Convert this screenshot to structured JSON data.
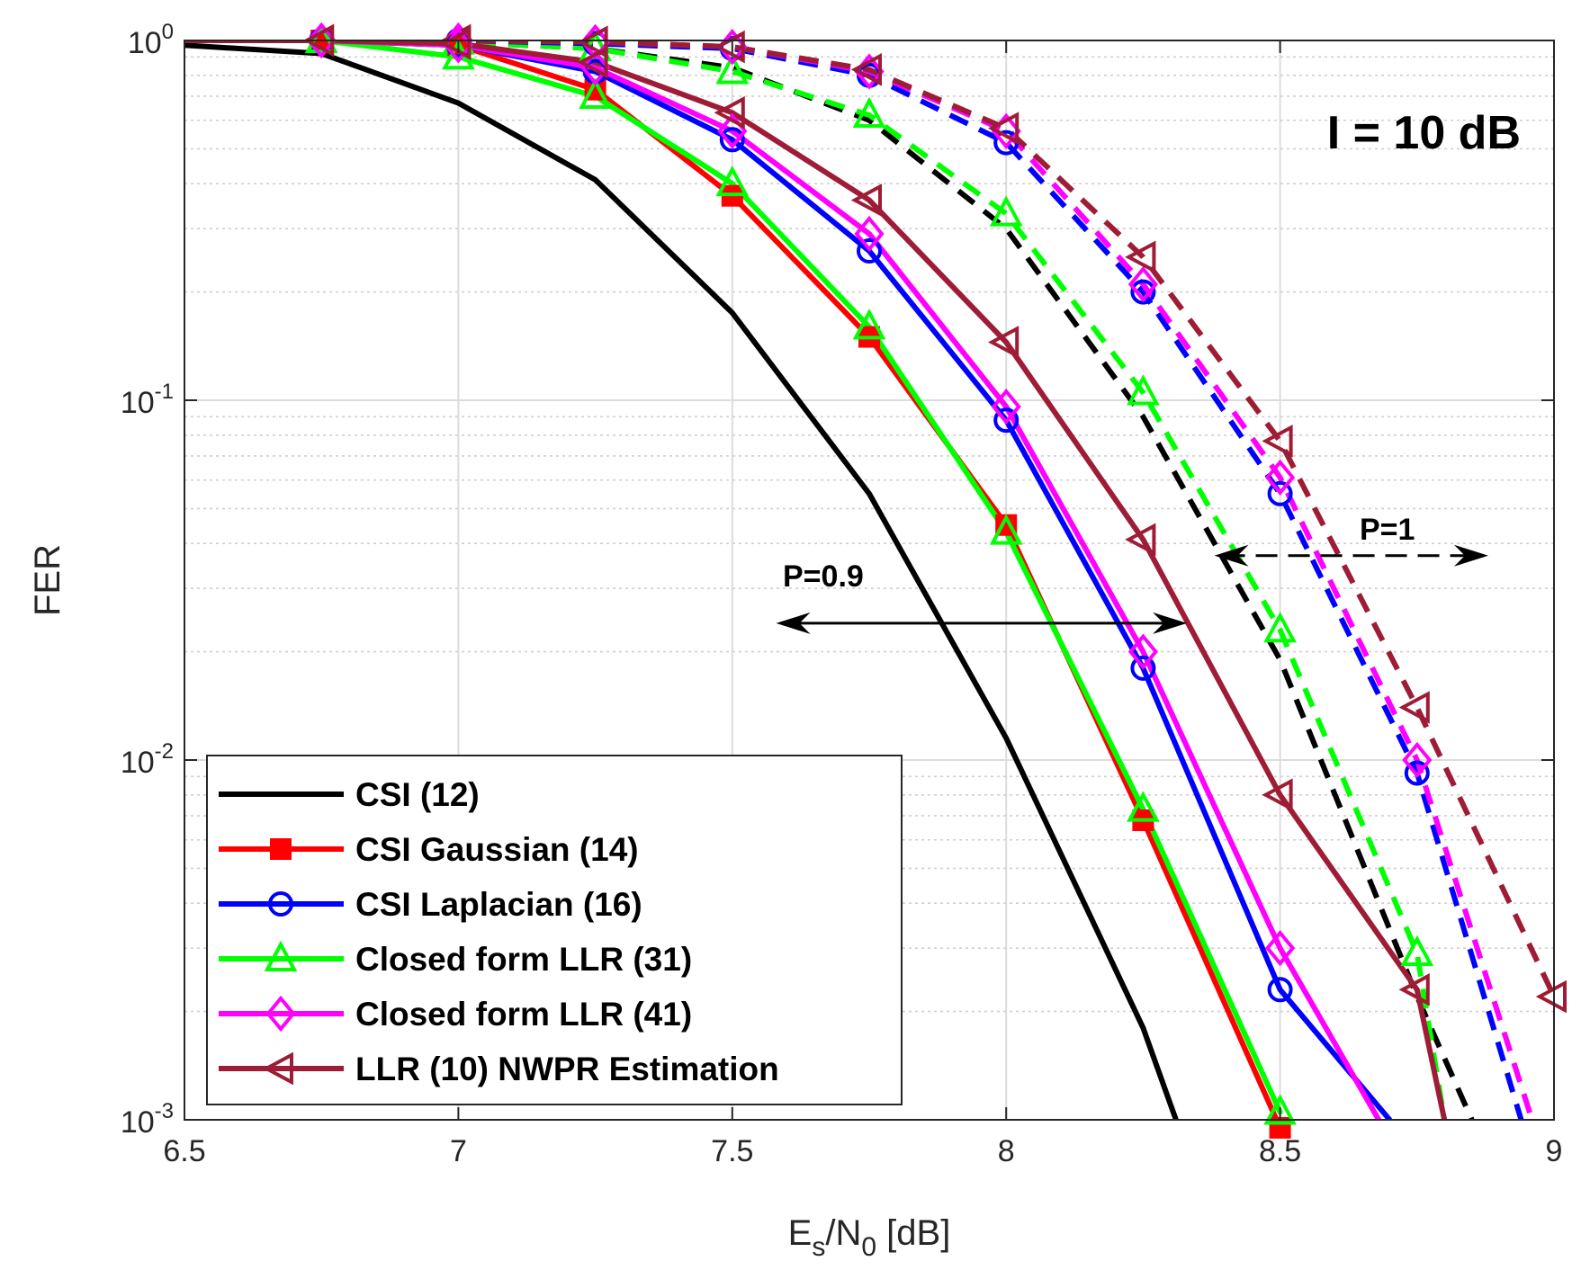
{
  "chart_data": {
    "type": "line",
    "title": "",
    "xlabel": {
      "main": "E",
      "sub1": "s",
      "mid": "/N",
      "sub2": "0",
      "tail": " [dB]"
    },
    "ylabel": "FER",
    "xlim": [
      6.5,
      9
    ],
    "ylim": [
      0.001,
      1
    ],
    "yscale": "log",
    "grid": true,
    "legend_position": "bottom-left",
    "xticks": [
      6.5,
      7,
      7.5,
      8,
      8.5,
      9
    ],
    "xtick_labels": [
      "6.5",
      "7",
      "7.5",
      "8",
      "8.5",
      "9"
    ],
    "ytick_labels": [
      {
        "base": "10",
        "exp": "0",
        "value": 1
      },
      {
        "base": "10",
        "exp": "-1",
        "value": 0.1
      },
      {
        "base": "10",
        "exp": "-2",
        "value": 0.01
      },
      {
        "base": "10",
        "exp": "-3",
        "value": 0.001
      }
    ],
    "annotations": {
      "interference": "I = 10 dB",
      "p09": "P=0.9",
      "p1": "P=1"
    },
    "arrows": [
      {
        "name": "p09-arrow",
        "y": 0.024,
        "x_from": 7.58,
        "x_to": 8.33,
        "style": "solid"
      },
      {
        "name": "p1-arrow",
        "y": 0.037,
        "x_from": 8.38,
        "x_to": 8.88,
        "style": "dashed"
      }
    ],
    "series": [
      {
        "name": "CSI (12)",
        "legend": true,
        "color": "#000000",
        "marker": "none",
        "dash": false,
        "x": [
          6.5,
          6.75,
          7.0,
          7.25,
          7.5,
          7.75,
          8.0,
          8.25,
          8.31
        ],
        "y": [
          0.97,
          0.92,
          0.67,
          0.41,
          0.175,
          0.055,
          0.0115,
          0.0018,
          0.001
        ]
      },
      {
        "name": "CSI Gaussian (14)",
        "legend": true,
        "color": "#ff0000",
        "marker": "square",
        "dash": false,
        "x": [
          6.5,
          6.75,
          7.0,
          7.25,
          7.5,
          7.75,
          8.0,
          8.25,
          8.5
        ],
        "y": [
          1.0,
          1.0,
          0.97,
          0.73,
          0.37,
          0.15,
          0.045,
          0.0068,
          0.00095
        ]
      },
      {
        "name": "CSI Laplacian (16)",
        "legend": true,
        "color": "#0000ff",
        "marker": "circle",
        "dash": false,
        "x": [
          6.5,
          6.75,
          7.0,
          7.25,
          7.5,
          7.75,
          8.0,
          8.25,
          8.5,
          8.7
        ],
        "y": [
          1.0,
          1.0,
          0.97,
          0.82,
          0.53,
          0.26,
          0.088,
          0.018,
          0.0023,
          0.001
        ]
      },
      {
        "name": "Closed form LLR (31)",
        "legend": true,
        "color": "#00ff00",
        "marker": "triangle-up",
        "dash": false,
        "x": [
          6.5,
          6.75,
          7.0,
          7.25,
          7.5,
          7.75,
          8.0,
          8.25,
          8.5
        ],
        "y": [
          1.0,
          1.0,
          0.9,
          0.7,
          0.4,
          0.16,
          0.043,
          0.0073,
          0.00105
        ]
      },
      {
        "name": "Closed form LLR (41)",
        "legend": true,
        "color": "#ff00ff",
        "marker": "diamond",
        "dash": false,
        "x": [
          6.5,
          6.75,
          7.0,
          7.25,
          7.5,
          7.75,
          8.0,
          8.25,
          8.5,
          8.68
        ],
        "y": [
          1.0,
          1.0,
          0.97,
          0.84,
          0.56,
          0.29,
          0.096,
          0.02,
          0.003,
          0.001
        ]
      },
      {
        "name": "LLR (10) NWPR Estimation",
        "legend": true,
        "color": "#9e1c35",
        "marker": "triangle-left",
        "dash": false,
        "x": [
          6.5,
          6.75,
          7.0,
          7.25,
          7.5,
          7.75,
          8.0,
          8.25,
          8.5,
          8.75,
          8.8
        ],
        "y": [
          1.0,
          1.0,
          0.98,
          0.87,
          0.63,
          0.36,
          0.145,
          0.041,
          0.008,
          0.0023,
          0.001
        ]
      },
      {
        "name": "CSI (12) P=1",
        "legend": false,
        "color": "#000000",
        "marker": "none",
        "dash": true,
        "x": [
          6.5,
          6.75,
          7.0,
          7.25,
          7.5,
          7.75,
          8.0,
          8.25,
          8.5,
          8.75,
          8.85
        ],
        "y": [
          1.0,
          1.0,
          0.99,
          0.95,
          0.84,
          0.6,
          0.3,
          0.09,
          0.019,
          0.0022,
          0.001
        ]
      },
      {
        "name": "Closed form LLR (31) P=1",
        "legend": false,
        "color": "#00ff00",
        "marker": "triangle-up",
        "dash": true,
        "x": [
          6.5,
          6.75,
          7.0,
          7.25,
          7.5,
          7.75,
          8.0,
          8.25,
          8.5,
          8.75,
          8.8
        ],
        "y": [
          1.0,
          1.0,
          0.99,
          0.95,
          0.82,
          0.62,
          0.33,
          0.105,
          0.023,
          0.0029,
          0.001
        ]
      },
      {
        "name": "CSI Laplacian (16) P=1",
        "legend": false,
        "color": "#0000ff",
        "marker": "circle",
        "dash": true,
        "x": [
          6.5,
          6.75,
          7.0,
          7.25,
          7.5,
          7.75,
          8.0,
          8.25,
          8.5,
          8.75,
          8.94
        ],
        "y": [
          1.0,
          1.0,
          1.0,
          0.98,
          0.95,
          0.8,
          0.52,
          0.2,
          0.055,
          0.0092,
          0.001
        ]
      },
      {
        "name": "Closed form LLR (41) P=1",
        "legend": false,
        "color": "#ff00ff",
        "marker": "diamond",
        "dash": true,
        "x": [
          6.5,
          6.75,
          7.0,
          7.25,
          7.5,
          7.75,
          8.0,
          8.25,
          8.5,
          8.75,
          8.96
        ],
        "y": [
          1.0,
          1.0,
          1.0,
          0.99,
          0.96,
          0.82,
          0.56,
          0.21,
          0.061,
          0.01,
          0.001
        ]
      },
      {
        "name": "LLR (10) NWPR Estimation P=1",
        "legend": false,
        "color": "#9e1c35",
        "marker": "triangle-left",
        "dash": true,
        "x": [
          6.5,
          6.75,
          7.0,
          7.25,
          7.5,
          7.75,
          8.0,
          8.25,
          8.5,
          8.75,
          9.0
        ],
        "y": [
          1.0,
          1.0,
          1.0,
          0.99,
          0.96,
          0.83,
          0.57,
          0.25,
          0.077,
          0.014,
          0.0022
        ]
      }
    ]
  }
}
